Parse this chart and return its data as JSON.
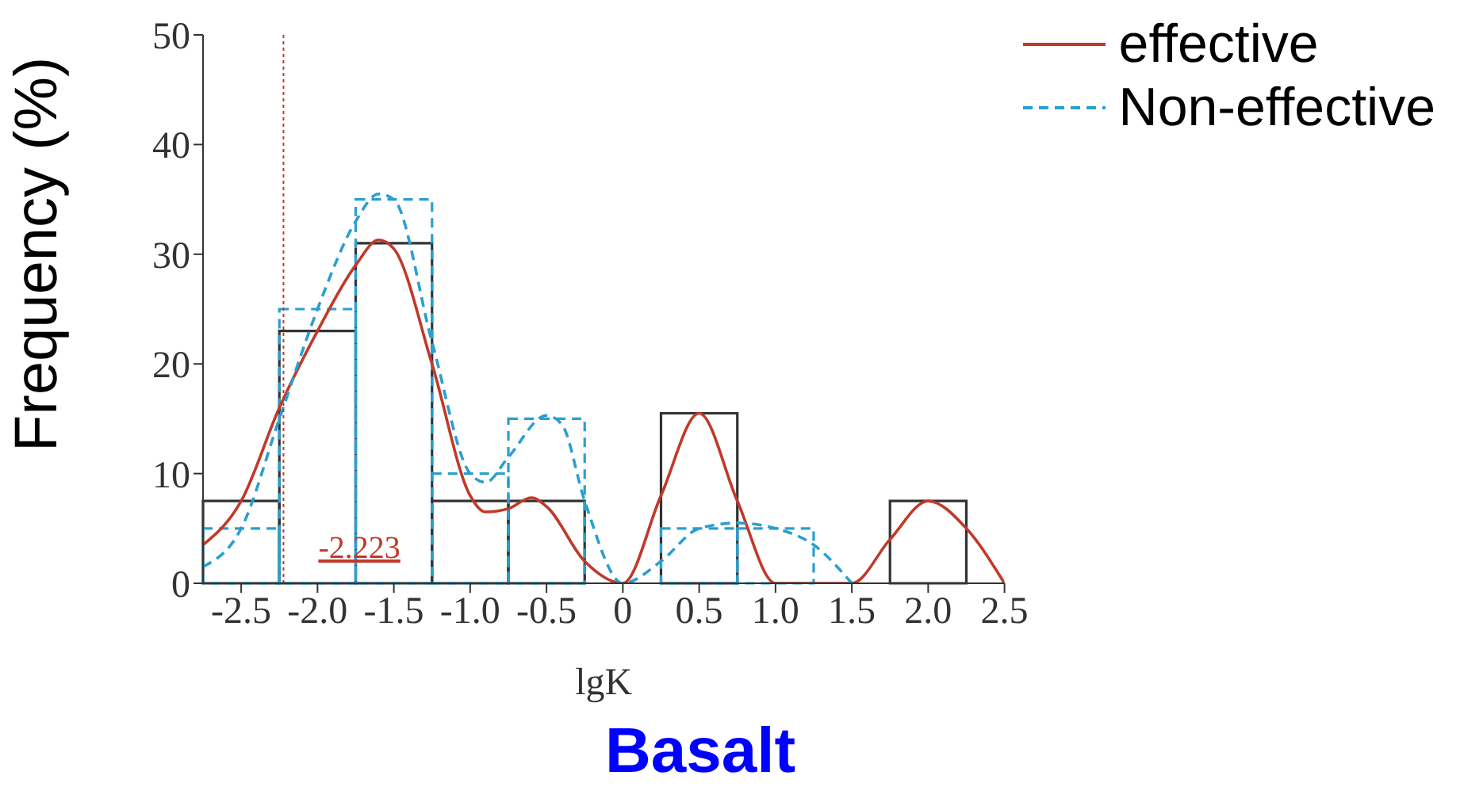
{
  "chart_data": {
    "type": "histogram",
    "title": "Basalt",
    "xlabel": "lgK",
    "ylabel": "Frequency (%)",
    "bins": [
      -2.75,
      -2.25,
      -1.75,
      -1.25,
      -0.75,
      -0.25,
      0.25,
      0.75,
      1.25,
      1.75,
      2.25
    ],
    "series": [
      {
        "color": "#333333",
        "line_style": "solid",
        "values": [
          7.5,
          23,
          31,
          7.5,
          7.5,
          0,
          15.5,
          0,
          0,
          7.5
        ]
      },
      {
        "color": "#2a9fd0",
        "line_style": "dashed",
        "values": [
          5,
          25,
          35,
          10,
          15,
          0,
          5,
          5,
          0,
          0
        ]
      },
      {
        "type": "line",
        "name": "effective",
        "color": "#c0392b",
        "line_style": "solid",
        "x": [
          -2.75,
          -2.5,
          -2.25,
          -2.0,
          -1.75,
          -1.6,
          -1.5,
          -1.25,
          -1.0,
          -0.9,
          -0.75,
          -0.6,
          -0.5,
          -0.25,
          0,
          0.25,
          0.5,
          0.75,
          1.0,
          1.5,
          1.75,
          2.0,
          2.25,
          2.5
        ],
        "values": [
          3.5,
          7.5,
          16,
          23,
          29,
          31.3,
          30.5,
          20,
          8,
          6.5,
          6.8,
          7.8,
          7,
          2,
          0,
          8,
          15.5,
          7.5,
          0,
          0,
          4,
          7.5,
          5,
          0
        ]
      },
      {
        "type": "line",
        "name": "Non-effective",
        "color": "#2a9fd0",
        "line_style": "dashed",
        "x": [
          -2.75,
          -2.5,
          -2.25,
          -2.0,
          -1.75,
          -1.6,
          -1.5,
          -1.25,
          -1.0,
          -0.9,
          -0.75,
          -0.5,
          -0.4,
          -0.25,
          0,
          0.25,
          0.5,
          0.75,
          1.0,
          1.25,
          1.5
        ],
        "values": [
          1.5,
          5,
          15,
          25,
          33,
          35.5,
          35,
          22,
          10,
          9.2,
          11.5,
          15.3,
          14.5,
          7.5,
          0,
          2,
          5,
          5.5,
          5,
          3.5,
          0
        ]
      }
    ],
    "ref_lines": [
      {
        "axis": "x",
        "value": -2.223,
        "label": "-2.223",
        "color": "#c0392b",
        "line_style": "dotted"
      }
    ],
    "xlim": [
      -2.75,
      2.5
    ],
    "xticks": [
      -2.5,
      {
        "value": -2.0,
        "label": "-2.0"
      },
      -1.5,
      {
        "value": -1.0,
        "label": "-1.0"
      },
      -0.5,
      0,
      0.5,
      {
        "value": 1.0,
        "label": "1.0"
      },
      1.5,
      {
        "value": 2.0,
        "label": "2.0"
      },
      2.5
    ],
    "ylim": [
      0,
      50
    ],
    "yticks": [
      0,
      10,
      20,
      30,
      40,
      50
    ],
    "grid": false,
    "legend": "top right"
  }
}
